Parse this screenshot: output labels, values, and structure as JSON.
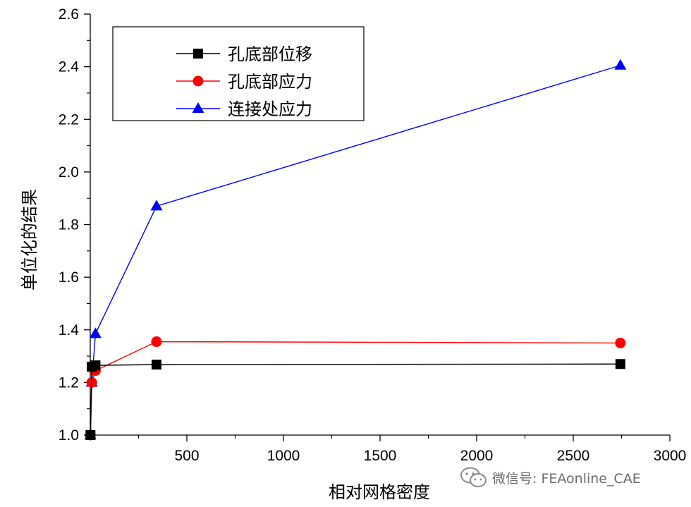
{
  "chart_data": {
    "type": "line",
    "xlabel": "相对网格密度",
    "ylabel": "单位化的结果",
    "xlim": [
      0,
      3000
    ],
    "ylim": [
      1.0,
      2.6
    ],
    "x_ticks": [
      500,
      1000,
      1500,
      2000,
      2500,
      3000
    ],
    "y_ticks": [
      1.0,
      1.2,
      1.4,
      1.6,
      1.8,
      2.0,
      2.2,
      2.4,
      2.6
    ],
    "legend_position": "top-left",
    "grid": false,
    "series": [
      {
        "name": "孔底部位移",
        "color": "#000000",
        "marker": "square",
        "x": [
          1,
          8,
          27,
          343,
          2744
        ],
        "y": [
          1.0,
          1.26,
          1.265,
          1.268,
          1.27
        ]
      },
      {
        "name": "孔底部应力",
        "color": "#ff0000",
        "marker": "circle",
        "x": [
          1,
          8,
          27,
          343,
          2744
        ],
        "y": [
          1.0,
          1.2,
          1.245,
          1.355,
          1.35
        ]
      },
      {
        "name": "连接处应力",
        "color": "#0000ff",
        "marker": "triangle",
        "x": [
          1,
          8,
          27,
          343,
          2744
        ],
        "y": [
          1.0,
          1.2,
          1.385,
          1.87,
          2.405
        ]
      }
    ]
  },
  "watermark": {
    "text": "微信号: FEAonline_CAE",
    "icon": "wechat-icon"
  }
}
